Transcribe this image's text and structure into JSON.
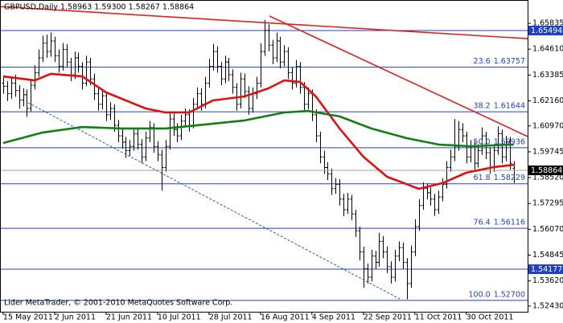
{
  "chart_data": {
    "type": "ohlc",
    "title": "GBPUSD,Daily 1.58963 1.59300 1.58267 1.58864",
    "footer": "Lider MetaTrader, © 2001-2010 MetaQuotes Software Corp.",
    "bar_color": "#000000",
    "xlim": [
      -0.8,
      132.5
    ],
    "ylim": [
      1.5216,
      1.6679
    ],
    "xticks": [
      {
        "value": 0,
        "label": "15 May 2011"
      },
      {
        "value": 13,
        "label": "2 Jun 2011"
      },
      {
        "value": 26,
        "label": "21 Jun 2011"
      },
      {
        "value": 39,
        "label": "10 Jul 2011"
      },
      {
        "value": 52,
        "label": "28 Jul 2011"
      },
      {
        "value": 65,
        "label": "16 Aug 2011"
      },
      {
        "value": 78,
        "label": "4 Sep 2011"
      },
      {
        "value": 91,
        "label": "22 Sep 2011"
      },
      {
        "value": 104,
        "label": "11 Oct 2011"
      },
      {
        "value": 117,
        "label": "30 Oct 2011"
      }
    ],
    "yticks": [
      1.65835,
      {
        "value": 1.6461,
        "label": "1.64610"
      },
      1.63385,
      {
        "value": 1.6216,
        "label": "1.62160"
      },
      {
        "value": 1.6097,
        "label": "1.60970"
      },
      1.59745,
      {
        "value": 1.5852,
        "label": "1.58520"
      },
      1.57295,
      {
        "value": 1.5607,
        "label": "1.56070"
      },
      1.54845,
      {
        "value": 1.5362,
        "label": "1.53620"
      },
      {
        "value": 1.5243,
        "label": "1.52430"
      }
    ],
    "ohlc": [
      [
        1.63,
        1.6335,
        1.625,
        1.6285
      ],
      [
        1.6285,
        1.631,
        1.6215,
        1.625
      ],
      [
        1.625,
        1.633,
        1.6225,
        1.63
      ],
      [
        1.63,
        1.634,
        1.6235,
        1.6265
      ],
      [
        1.6265,
        1.629,
        1.618,
        1.622
      ],
      [
        1.622,
        1.6275,
        1.619,
        1.6245
      ],
      [
        1.6245,
        1.627,
        1.614,
        1.618
      ],
      [
        1.618,
        1.632,
        1.6165,
        1.629
      ],
      [
        1.629,
        1.6385,
        1.627,
        1.635
      ],
      [
        1.635,
        1.646,
        1.633,
        1.642
      ],
      [
        1.642,
        1.6525,
        1.64,
        1.649
      ],
      [
        1.649,
        1.653,
        1.642,
        1.645
      ],
      [
        1.645,
        1.654,
        1.6425,
        1.65
      ],
      [
        1.65,
        1.652,
        1.64,
        1.643
      ],
      [
        1.643,
        1.646,
        1.635,
        1.638
      ],
      [
        1.638,
        1.649,
        1.636,
        1.646
      ],
      [
        1.646,
        1.6485,
        1.6375,
        1.64
      ],
      [
        1.64,
        1.642,
        1.631,
        1.634
      ],
      [
        1.634,
        1.645,
        1.632,
        1.642
      ],
      [
        1.642,
        1.6445,
        1.635,
        1.638
      ],
      [
        1.638,
        1.64,
        1.627,
        1.63
      ],
      [
        1.63,
        1.643,
        1.6285,
        1.64
      ],
      [
        1.64,
        1.642,
        1.629,
        1.632
      ],
      [
        1.632,
        1.6345,
        1.622,
        1.625
      ],
      [
        1.625,
        1.6275,
        1.617,
        1.62
      ],
      [
        1.62,
        1.627,
        1.6175,
        1.624
      ],
      [
        1.624,
        1.626,
        1.612,
        1.615
      ],
      [
        1.615,
        1.621,
        1.6125,
        1.618
      ],
      [
        1.618,
        1.62,
        1.607,
        1.61
      ],
      [
        1.61,
        1.6125,
        1.602,
        1.605
      ],
      [
        1.605,
        1.608,
        1.599,
        1.602
      ],
      [
        1.602,
        1.6045,
        1.5945,
        1.598
      ],
      [
        1.598,
        1.603,
        1.5955,
        1.6
      ],
      [
        1.6,
        1.609,
        1.598,
        1.606
      ],
      [
        1.606,
        1.6085,
        1.5985,
        1.601
      ],
      [
        1.601,
        1.6035,
        1.592,
        1.595
      ],
      [
        1.595,
        1.607,
        1.593,
        1.604
      ],
      [
        1.604,
        1.612,
        1.602,
        1.609
      ],
      [
        1.609,
        1.611,
        1.597,
        1.6
      ],
      [
        1.6,
        1.6025,
        1.593,
        1.596
      ],
      [
        1.596,
        1.5985,
        1.579,
        1.59
      ],
      [
        1.59,
        1.603,
        1.588,
        1.6
      ],
      [
        1.6,
        1.616,
        1.5985,
        1.613
      ],
      [
        1.613,
        1.6155,
        1.605,
        1.608
      ],
      [
        1.608,
        1.611,
        1.602,
        1.605
      ],
      [
        1.605,
        1.615,
        1.603,
        1.612
      ],
      [
        1.612,
        1.618,
        1.6095,
        1.615
      ],
      [
        1.615,
        1.6175,
        1.607,
        1.61
      ],
      [
        1.61,
        1.623,
        1.6085,
        1.62
      ],
      [
        1.62,
        1.628,
        1.6175,
        1.625
      ],
      [
        1.625,
        1.6275,
        1.617,
        1.62
      ],
      [
        1.62,
        1.633,
        1.618,
        1.63
      ],
      [
        1.63,
        1.6415,
        1.628,
        1.638
      ],
      [
        1.638,
        1.6485,
        1.636,
        1.645
      ],
      [
        1.645,
        1.6475,
        1.635,
        1.638
      ],
      [
        1.638,
        1.64,
        1.629,
        1.632
      ],
      [
        1.632,
        1.643,
        1.63,
        1.64
      ],
      [
        1.64,
        1.642,
        1.631,
        1.634
      ],
      [
        1.634,
        1.6365,
        1.625,
        1.628
      ],
      [
        1.628,
        1.63,
        1.617,
        1.62
      ],
      [
        1.62,
        1.635,
        1.618,
        1.632
      ],
      [
        1.632,
        1.6345,
        1.623,
        1.626
      ],
      [
        1.626,
        1.6285,
        1.615,
        1.618
      ],
      [
        1.618,
        1.628,
        1.616,
        1.625
      ],
      [
        1.625,
        1.633,
        1.6225,
        1.63
      ],
      [
        1.63,
        1.649,
        1.628,
        1.645
      ],
      [
        1.645,
        1.66,
        1.643,
        1.655
      ],
      [
        1.655,
        1.658,
        1.645,
        1.648
      ],
      [
        1.648,
        1.6505,
        1.639,
        1.642
      ],
      [
        1.642,
        1.654,
        1.64,
        1.65
      ],
      [
        1.65,
        1.652,
        1.637,
        1.64
      ],
      [
        1.64,
        1.648,
        1.638,
        1.645
      ],
      [
        1.645,
        1.647,
        1.632,
        1.635
      ],
      [
        1.635,
        1.6375,
        1.627,
        1.63
      ],
      [
        1.63,
        1.641,
        1.628,
        1.638
      ],
      [
        1.638,
        1.64,
        1.625,
        1.628
      ],
      [
        1.628,
        1.6305,
        1.617,
        1.62
      ],
      [
        1.62,
        1.628,
        1.6175,
        1.625
      ],
      [
        1.625,
        1.627,
        1.612,
        1.615
      ],
      [
        1.615,
        1.6175,
        1.602,
        1.605
      ],
      [
        1.605,
        1.607,
        1.592,
        1.595
      ],
      [
        1.595,
        1.598,
        1.587,
        1.59
      ],
      [
        1.59,
        1.5925,
        1.584,
        1.587
      ],
      [
        1.587,
        1.5895,
        1.577,
        1.58
      ],
      [
        1.58,
        1.585,
        1.5775,
        1.582
      ],
      [
        1.582,
        1.5845,
        1.572,
        1.575
      ],
      [
        1.575,
        1.5775,
        1.567,
        1.57
      ],
      [
        1.57,
        1.578,
        1.568,
        1.575
      ],
      [
        1.575,
        1.577,
        1.565,
        1.568
      ],
      [
        1.568,
        1.57,
        1.557,
        1.56
      ],
      [
        1.56,
        1.562,
        1.546,
        1.55
      ],
      [
        1.55,
        1.5525,
        1.533,
        1.542
      ],
      [
        1.542,
        1.5445,
        1.535,
        1.538
      ],
      [
        1.538,
        1.551,
        1.536,
        1.548
      ],
      [
        1.548,
        1.5505,
        1.542,
        1.545
      ],
      [
        1.545,
        1.559,
        1.543,
        1.555
      ],
      [
        1.555,
        1.5575,
        1.547,
        1.55
      ],
      [
        1.55,
        1.5525,
        1.54,
        1.543
      ],
      [
        1.543,
        1.5455,
        1.535,
        1.538
      ],
      [
        1.538,
        1.551,
        1.536,
        1.548
      ],
      [
        1.548,
        1.555,
        1.5455,
        1.552
      ],
      [
        1.552,
        1.5545,
        1.542,
        1.545
      ],
      [
        1.545,
        1.547,
        1.5275,
        1.535
      ],
      [
        1.535,
        1.553,
        1.533,
        1.55
      ],
      [
        1.55,
        1.5655,
        1.548,
        1.562
      ],
      [
        1.562,
        1.575,
        1.56,
        1.572
      ],
      [
        1.572,
        1.583,
        1.57,
        1.58
      ],
      [
        1.58,
        1.5825,
        1.575,
        1.578
      ],
      [
        1.578,
        1.5805,
        1.572,
        1.575
      ],
      [
        1.575,
        1.5775,
        1.567,
        1.57
      ],
      [
        1.57,
        1.579,
        1.568,
        1.576
      ],
      [
        1.576,
        1.585,
        1.574,
        1.582
      ],
      [
        1.582,
        1.593,
        1.58,
        1.59
      ],
      [
        1.59,
        1.5985,
        1.588,
        1.595
      ],
      [
        1.595,
        1.613,
        1.593,
        1.6
      ],
      [
        1.6,
        1.612,
        1.598,
        1.608
      ],
      [
        1.608,
        1.611,
        1.602,
        1.605
      ],
      [
        1.605,
        1.607,
        1.592,
        1.595
      ],
      [
        1.595,
        1.603,
        1.5925,
        1.6
      ],
      [
        1.6,
        1.6025,
        1.589,
        1.592
      ],
      [
        1.592,
        1.601,
        1.59,
        1.598
      ],
      [
        1.598,
        1.609,
        1.596,
        1.605
      ],
      [
        1.605,
        1.607,
        1.594,
        1.597
      ],
      [
        1.597,
        1.5995,
        1.587,
        1.59
      ],
      [
        1.59,
        1.601,
        1.588,
        1.598
      ],
      [
        1.598,
        1.6095,
        1.596,
        1.606
      ],
      [
        1.606,
        1.608,
        1.592,
        1.595
      ],
      [
        1.595,
        1.605,
        1.593,
        1.602
      ],
      [
        1.602,
        1.6045,
        1.589,
        1.592
      ],
      [
        1.58963,
        1.593,
        1.58267,
        1.58864
      ]
    ],
    "series": [
      {
        "color": "#e01010",
        "x": [
          0,
          8,
          12,
          20,
          26,
          36,
          41,
          47,
          53,
          61,
          67,
          71,
          75,
          79,
          85,
          91,
          97,
          105,
          111,
          117,
          124,
          129
        ],
        "values": [
          1.6332,
          1.6313,
          1.6344,
          1.6332,
          1.6256,
          1.618,
          1.6161,
          1.6161,
          1.6218,
          1.6237,
          1.6275,
          1.6313,
          1.6306,
          1.6237,
          1.6085,
          1.5951,
          1.5856,
          1.5799,
          1.5826,
          1.5875,
          1.5902,
          1.5913
        ]
      },
      {
        "color": "#108010",
        "x": [
          0,
          10,
          20,
          30,
          41,
          51,
          61,
          71,
          77,
          85,
          93,
          102,
          110,
          118,
          129
        ],
        "values": [
          1.6016,
          1.6066,
          1.6092,
          1.6085,
          1.6085,
          1.6104,
          1.6123,
          1.6161,
          1.6168,
          1.6142,
          1.6085,
          1.6039,
          1.6009,
          1.6001,
          1.6009
        ]
      }
    ],
    "trendlines": [
      {
        "color": "#e02020",
        "dashed": false,
        "x": [
          -0.8,
          132.5
        ],
        "values": [
          1.6663,
          1.6511
        ]
      },
      {
        "color": "#e02020",
        "dashed": false,
        "x": [
          67.3,
          132.5
        ],
        "values": [
          1.6618,
          1.6047
        ]
      },
      {
        "color": "#3050c8",
        "dashed": true,
        "x": [
          6.3,
          100.2
        ],
        "values": [
          1.6207,
          1.5277
        ]
      }
    ],
    "level_color": "#2040c0",
    "fib_levels": [
      {
        "level": "23.6",
        "price": 1.63757
      },
      {
        "level": "38.2",
        "price": 1.61644
      },
      {
        "level": "50.0",
        "price": 1.59936
      },
      {
        "level": "61.8",
        "price": 1.58229
      },
      {
        "level": "76.4",
        "price": 1.56116
      },
      {
        "level": "100.0",
        "price": {
          "value": 1.527,
          "label": "1.52700"
        }
      }
    ],
    "hlines": [
      1.65494,
      1.54177
    ]
  }
}
